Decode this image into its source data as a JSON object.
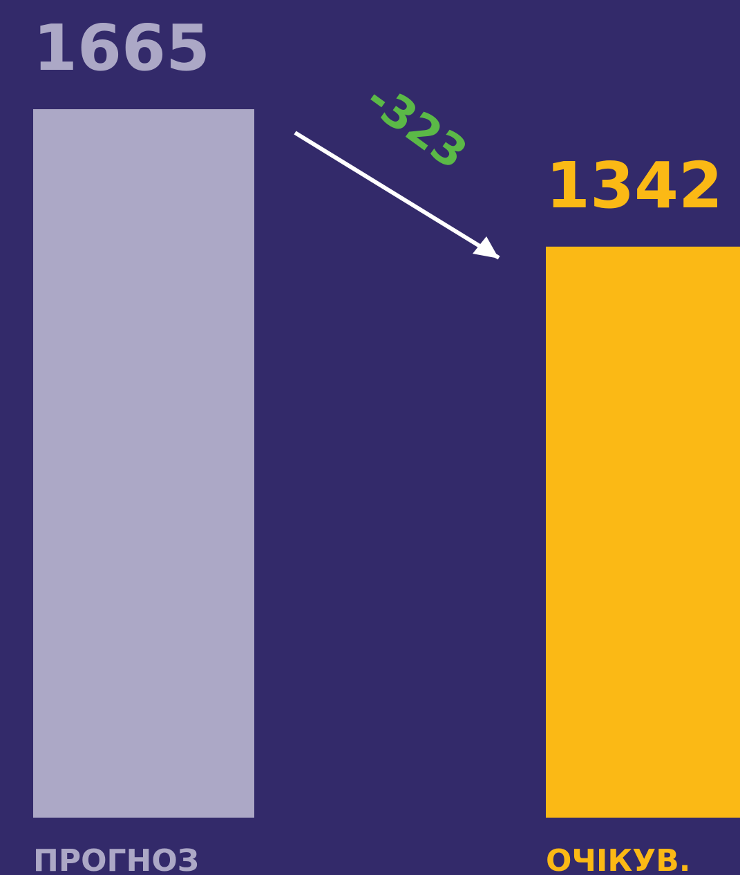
{
  "chart_data": {
    "type": "bar",
    "categories": [
      "ПРОГНОЗ",
      "ОЧІКУВ."
    ],
    "values": [
      1665,
      1342
    ],
    "colors": [
      "#aca8c6",
      "#fbb915"
    ],
    "annotation": "-323",
    "annotation_color": "#5bb947"
  }
}
